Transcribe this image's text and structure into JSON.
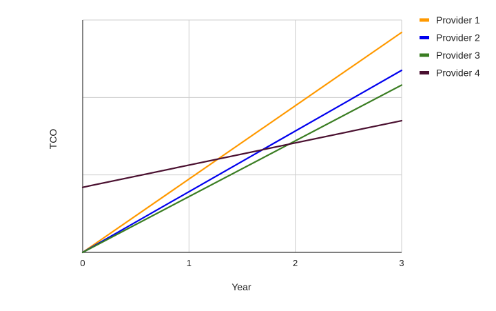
{
  "chart_data": {
    "type": "line",
    "title": "",
    "xlabel": "Year",
    "ylabel": "TCO",
    "x": [
      0,
      3
    ],
    "xlim": [
      0,
      3
    ],
    "ylim": [
      0,
      3
    ],
    "x_ticks": [
      0,
      1,
      2,
      3
    ],
    "y_gridlines": [
      1,
      2,
      3
    ],
    "y_tick_labels_shown": false,
    "grid": true,
    "legend_position": "right",
    "series": [
      {
        "name": "Provider 1",
        "color": "#FF9900",
        "values": [
          0,
          2.84
        ]
      },
      {
        "name": "Provider 2",
        "color": "#0000EE",
        "values": [
          0,
          2.35
        ]
      },
      {
        "name": "Provider 3",
        "color": "#3A7D22",
        "values": [
          0,
          2.16
        ]
      },
      {
        "name": "Provider 4",
        "color": "#4A1030",
        "values": [
          0.84,
          1.7
        ]
      }
    ]
  }
}
